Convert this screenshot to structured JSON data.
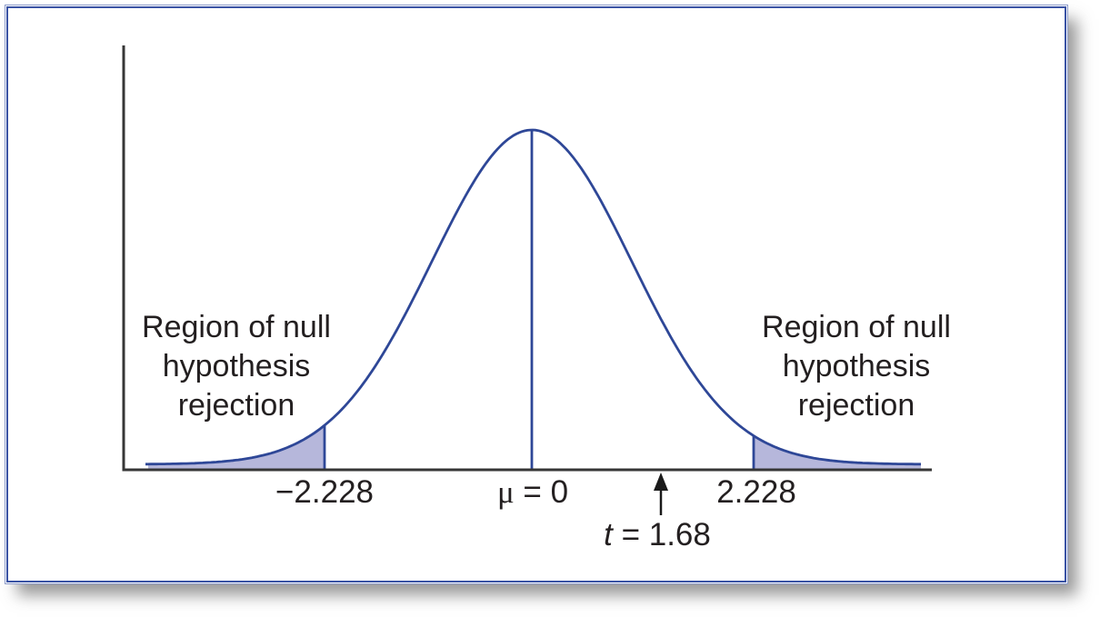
{
  "figure": {
    "left_region_label": {
      "lines": [
        "Region of null",
        "hypothesis",
        "rejection"
      ]
    },
    "right_region_label": {
      "lines": [
        "Region of null",
        "hypothesis",
        "rejection"
      ]
    },
    "axis_labels": {
      "left_critical": "−2.228",
      "mean_mu": "μ",
      "mean_rest": " = 0",
      "right_critical": "2.228",
      "observed_t": "t",
      "observed_rest": " = 1.68"
    }
  },
  "colors": {
    "curve": "#2e4797",
    "fill": "#b6b7db",
    "axis": "#373737",
    "arrow": "#1a1a1a",
    "text": "#231f20",
    "frame_border": "#3a53a4"
  },
  "chart_data": {
    "type": "area",
    "title": "",
    "curve": "bell-shaped sampling distribution (t distribution) centered at 0",
    "mean": 0,
    "mean_label": "μ = 0",
    "critical_values": [
      -2.228,
      2.228
    ],
    "critical_labels": [
      "−2.228",
      "2.228"
    ],
    "observed_statistic": {
      "value": 1.68,
      "label": "t = 1.68",
      "marker": "up-arrow"
    },
    "x_annotations": [
      {
        "x": -2.228,
        "label": "−2.228",
        "type": "critical-value"
      },
      {
        "x": 0,
        "label": "μ = 0",
        "type": "mean"
      },
      {
        "x": 1.68,
        "label": "t = 1.68",
        "type": "observed-statistic"
      },
      {
        "x": 2.228,
        "label": "2.228",
        "type": "critical-value"
      }
    ],
    "shaded_regions": [
      {
        "from": "-∞",
        "to": -2.228,
        "label": "Region of null hypothesis rejection"
      },
      {
        "from": 2.228,
        "to": "∞",
        "label": "Region of null hypothesis rejection"
      }
    ],
    "grid": false,
    "legend": false,
    "axis_ticks": false
  }
}
